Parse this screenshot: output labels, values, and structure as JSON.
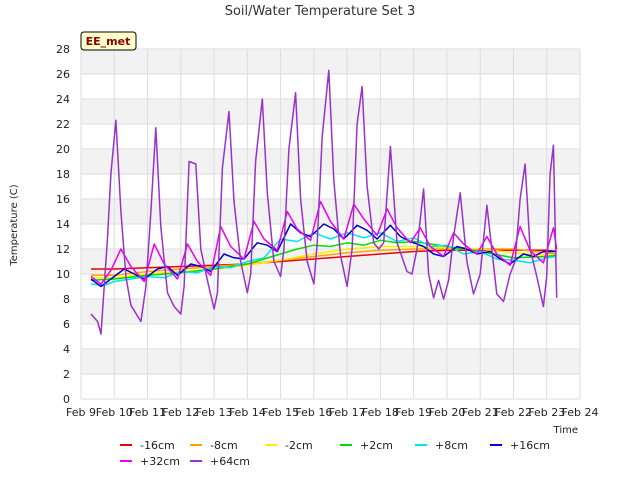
{
  "chart_data": {
    "type": "line",
    "title": "Soil/Water Temperature Set 3",
    "xlabel": "Time",
    "ylabel": "Temperature (C)",
    "badge": "EE_met",
    "xlim": [
      9,
      24
    ],
    "ylim": [
      0,
      28
    ],
    "yticks": [
      0,
      2,
      4,
      6,
      8,
      10,
      12,
      14,
      16,
      18,
      20,
      22,
      24,
      26,
      28
    ],
    "xticks": [
      9,
      10,
      11,
      12,
      13,
      14,
      15,
      16,
      17,
      18,
      19,
      20,
      21,
      22,
      23,
      24
    ],
    "xtick_labels": [
      "Feb 9",
      "Feb 10",
      "Feb 11",
      "Feb 12",
      "Feb 13",
      "Feb 14",
      "Feb 15",
      "Feb 16",
      "Feb 17",
      "Feb 18",
      "Feb 19",
      "Feb 20",
      "Feb 21",
      "Feb 22",
      "Feb 23",
      "Feb 24"
    ],
    "grid": true,
    "legend_position": "bottom",
    "series": [
      {
        "name": "-16cm",
        "color": "#ee0000",
        "x": [
          9.3,
          10,
          11,
          12,
          13,
          14,
          15,
          16,
          17,
          18,
          19,
          20,
          21,
          22,
          23,
          23.3
        ],
        "y": [
          10.4,
          10.4,
          10.5,
          10.6,
          10.7,
          10.8,
          11.0,
          11.2,
          11.4,
          11.6,
          11.8,
          11.9,
          11.9,
          11.9,
          11.9,
          11.8
        ]
      },
      {
        "name": "-8cm",
        "color": "#ffa500",
        "x": [
          9.3,
          10,
          11,
          12,
          13,
          14,
          15,
          16,
          17,
          18,
          19,
          20,
          21,
          22,
          23,
          23.3
        ],
        "y": [
          9.9,
          9.9,
          10.2,
          10.4,
          10.6,
          10.8,
          11.1,
          11.4,
          11.7,
          11.9,
          12.0,
          12.0,
          12.0,
          12.0,
          11.7,
          11.6
        ]
      },
      {
        "name": "-2cm",
        "color": "#ffee00",
        "x": [
          9.3,
          10,
          11,
          12,
          13,
          14,
          15,
          16,
          17,
          18,
          19,
          20,
          21,
          22,
          23,
          23.3
        ],
        "y": [
          9.7,
          9.7,
          10.0,
          10.2,
          10.4,
          10.7,
          11.1,
          11.6,
          12.0,
          12.2,
          12.2,
          12.1,
          12.0,
          11.7,
          11.5,
          11.5
        ]
      },
      {
        "name": "+2cm",
        "color": "#00dd00",
        "x": [
          9.3,
          10,
          11,
          12,
          13,
          14,
          14.5,
          15,
          15.5,
          16,
          16.5,
          17,
          17.5,
          18,
          18.5,
          19,
          20,
          21,
          22,
          23,
          23.3
        ],
        "y": [
          9.5,
          9.6,
          9.9,
          10.1,
          10.4,
          10.8,
          11.2,
          11.6,
          12.0,
          12.3,
          12.2,
          12.5,
          12.3,
          12.7,
          12.5,
          12.6,
          12.2,
          11.8,
          11.3,
          11.4,
          11.5
        ]
      },
      {
        "name": "+8cm",
        "color": "#00e5ee",
        "x": [
          9.3,
          9.7,
          10,
          10.5,
          11,
          11.5,
          12,
          12.5,
          13,
          13.5,
          14,
          14.5,
          15,
          15.5,
          16,
          16.5,
          17,
          17.5,
          18,
          18.5,
          19,
          19.5,
          20,
          20.5,
          21,
          21.5,
          22,
          22.5,
          23,
          23.3
        ],
        "y": [
          9.2,
          9.1,
          9.4,
          9.6,
          9.8,
          9.7,
          10.2,
          10.1,
          10.6,
          10.5,
          11.0,
          11.3,
          12.8,
          12.6,
          13.3,
          12.8,
          13.3,
          12.9,
          13.3,
          12.6,
          12.9,
          12.2,
          12.3,
          11.6,
          11.8,
          11.2,
          11.1,
          10.9,
          11.3,
          11.4
        ]
      },
      {
        "name": "+16cm",
        "color": "#0000cc",
        "x": [
          9.3,
          9.6,
          9.9,
          10.3,
          10.6,
          10.9,
          11.3,
          11.6,
          11.9,
          12.3,
          12.6,
          12.9,
          13.3,
          13.6,
          13.9,
          14.3,
          14.6,
          14.9,
          15.3,
          15.6,
          15.9,
          16.3,
          16.6,
          16.9,
          17.3,
          17.6,
          17.9,
          18.3,
          18.6,
          18.9,
          19.3,
          19.6,
          19.9,
          20.3,
          20.6,
          20.9,
          21.3,
          21.6,
          21.9,
          22.3,
          22.6,
          22.9,
          23.3
        ],
        "y": [
          9.6,
          9.0,
          9.6,
          10.4,
          10.0,
          9.6,
          10.4,
          10.6,
          9.9,
          10.8,
          10.6,
          10.2,
          11.6,
          11.3,
          11.2,
          12.5,
          12.3,
          11.8,
          14.0,
          13.3,
          13.0,
          14.0,
          13.6,
          12.8,
          13.9,
          13.5,
          12.8,
          13.9,
          13.0,
          12.6,
          12.2,
          11.6,
          11.4,
          12.2,
          12.0,
          11.6,
          11.8,
          11.2,
          10.8,
          11.6,
          11.4,
          11.8,
          11.8
        ]
      },
      {
        "name": "+32cm",
        "color": "#ee00ee",
        "x": [
          9.3,
          9.6,
          9.9,
          10.2,
          10.5,
          10.9,
          11.2,
          11.5,
          11.9,
          12.2,
          12.5,
          12.9,
          13.2,
          13.5,
          13.9,
          14.2,
          14.5,
          14.9,
          15.2,
          15.5,
          15.9,
          16.2,
          16.5,
          16.9,
          17.2,
          17.5,
          17.9,
          18.2,
          18.5,
          18.9,
          19.2,
          19.5,
          19.9,
          20.2,
          20.5,
          20.9,
          21.2,
          21.5,
          21.9,
          22.2,
          22.5,
          22.9,
          23.2,
          23.3
        ],
        "y": [
          9.8,
          9.2,
          10.3,
          12.0,
          10.6,
          9.4,
          12.4,
          10.8,
          9.6,
          12.4,
          11.0,
          9.9,
          13.8,
          12.2,
          11.2,
          14.2,
          12.8,
          11.9,
          15.0,
          13.6,
          12.7,
          15.8,
          14.2,
          12.8,
          15.6,
          14.4,
          13.1,
          15.2,
          13.7,
          12.5,
          13.7,
          12.2,
          11.4,
          13.3,
          12.4,
          11.6,
          13.0,
          11.6,
          10.7,
          13.8,
          11.9,
          10.9,
          13.7,
          12.0
        ]
      },
      {
        "name": "+64cm",
        "color": "#9932cc",
        "x": [
          9.3,
          9.5,
          9.6,
          9.8,
          9.9,
          10.05,
          10.2,
          10.35,
          10.5,
          10.8,
          10.95,
          11.1,
          11.25,
          11.4,
          11.6,
          11.8,
          12.0,
          12.1,
          12.25,
          12.45,
          12.6,
          12.8,
          13.0,
          13.1,
          13.25,
          13.45,
          13.6,
          13.8,
          14.0,
          14.1,
          14.25,
          14.45,
          14.6,
          14.8,
          15.0,
          15.1,
          15.25,
          15.45,
          15.6,
          15.8,
          16.0,
          16.1,
          16.25,
          16.45,
          16.6,
          16.8,
          17.0,
          17.15,
          17.3,
          17.45,
          17.6,
          17.8,
          17.95,
          18.1,
          18.3,
          18.5,
          18.8,
          18.95,
          19.1,
          19.3,
          19.45,
          19.6,
          19.75,
          19.9,
          20.05,
          20.2,
          20.4,
          20.6,
          20.8,
          21.0,
          21.2,
          21.5,
          21.7,
          21.9,
          22.05,
          22.2,
          22.35,
          22.5,
          22.7,
          22.9,
          23.0,
          23.1,
          23.2,
          23.3
        ],
        "y": [
          6.8,
          6.2,
          5.2,
          13.0,
          18.0,
          22.3,
          15.0,
          9.8,
          7.5,
          6.2,
          9.0,
          15.0,
          21.7,
          13.8,
          8.5,
          7.4,
          6.8,
          9.0,
          19.0,
          18.8,
          12.0,
          9.5,
          7.2,
          8.5,
          18.5,
          23.0,
          15.8,
          11.0,
          8.5,
          10.0,
          19.0,
          24.0,
          16.5,
          11.0,
          9.8,
          12.0,
          20.0,
          24.5,
          16.0,
          11.0,
          9.2,
          12.5,
          21.0,
          26.3,
          17.5,
          11.5,
          9.0,
          12.0,
          22.0,
          25.0,
          17.0,
          12.5,
          12.0,
          12.5,
          20.2,
          12.5,
          10.2,
          10.0,
          12.0,
          16.8,
          10.0,
          8.1,
          9.5,
          8.0,
          9.5,
          13.0,
          16.5,
          11.0,
          8.4,
          10.0,
          15.5,
          8.4,
          7.8,
          10.0,
          11.0,
          16.0,
          18.8,
          12.0,
          9.8,
          7.4,
          9.8,
          18.0,
          20.3,
          8.1
        ]
      }
    ]
  }
}
